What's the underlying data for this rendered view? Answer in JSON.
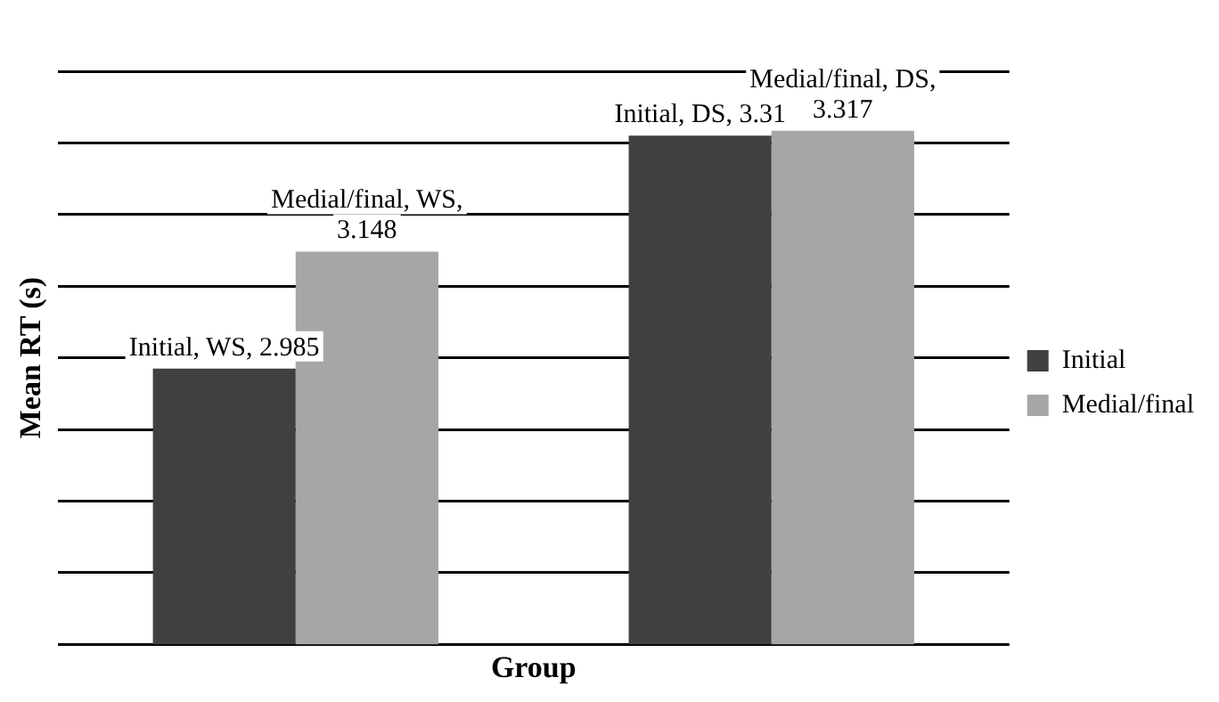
{
  "chart_data": {
    "type": "bar",
    "xlabel": "Group",
    "ylabel": "Mean RT (s)",
    "categories": [
      null,
      null
    ],
    "series": [
      {
        "name": "Initial",
        "color": "#404040",
        "values": [
          2.985,
          3.31
        ],
        "value_labels": [
          "Initial, WS, 2.985",
          "Initial, DS, 3.31"
        ]
      },
      {
        "name": "Medial/final",
        "color": "#a6a6a6",
        "values": [
          3.148,
          3.317
        ],
        "value_labels": [
          "Medial/final, WS, 3.148",
          "Medial/final, DS, 3.317"
        ]
      }
    ],
    "ylim": [
      2.6,
      3.4
    ],
    "yticks": [
      2.6,
      2.7,
      2.8,
      2.9,
      3.0,
      3.1,
      3.2,
      3.3,
      3.4
    ],
    "tick_labels": false,
    "grid": "y",
    "legend": "right"
  }
}
